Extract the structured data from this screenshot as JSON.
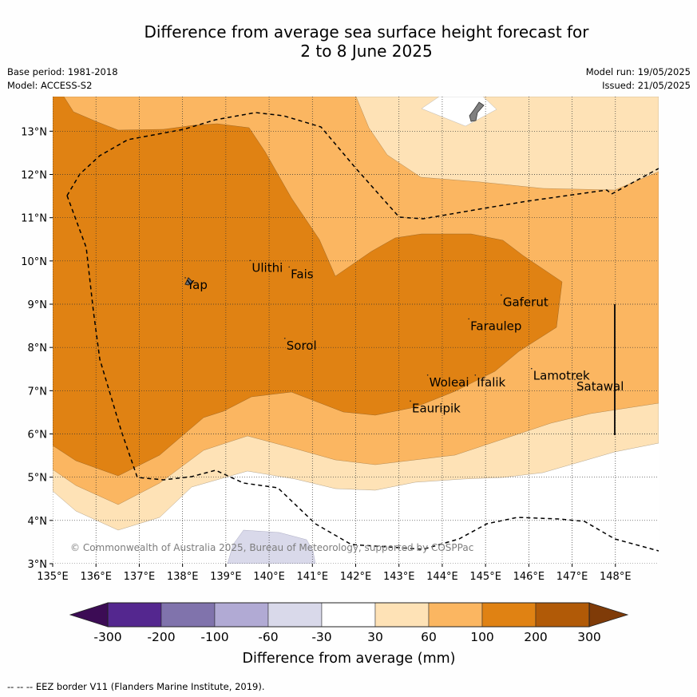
{
  "title_line1": "Difference from average sea surface height forecast for",
  "title_line2": "2 to 8 June 2025",
  "base_period": "Base period: 1981-2018",
  "model": "Model: ACCESS-S2",
  "model_run": "Model run: 19/05/2025",
  "issued": "Issued: 21/05/2025",
  "copyright": "© Commonwealth of Australia 2025, Bureau of Meteorology, supported by COSPPac",
  "footer": "--  --  -- EEZ border V11 (Flanders Marine Institute, 2019).",
  "colorbar_label": "Difference from average (mm)",
  "colorbar_ticks": [
    "-300",
    "-200",
    "-100",
    "-60",
    "-30",
    "30",
    "60",
    "100",
    "200",
    "300"
  ],
  "colorbar_colors": [
    "#3c0c55",
    "#54278f",
    "#8073ac",
    "#b1aad4",
    "#d9d9ea",
    "#ffffff",
    "#fee2b6",
    "#fbb661",
    "#e08213",
    "#b15a07",
    "#7f3b08"
  ],
  "chart_data": {
    "type": "map",
    "lon_range": [
      135,
      149
    ],
    "lat_range": [
      3,
      13.8
    ],
    "x_ticks": [
      "135°E",
      "136°E",
      "137°E",
      "138°E",
      "139°E",
      "140°E",
      "141°E",
      "142°E",
      "143°E",
      "144°E",
      "145°E",
      "146°E",
      "147°E",
      "148°E"
    ],
    "y_ticks": [
      "3°N",
      "4°N",
      "5°N",
      "6°N",
      "7°N",
      "8°N",
      "9°N",
      "10°N",
      "11°N",
      "12°N",
      "13°N"
    ],
    "grid": true,
    "places": [
      {
        "name": "Yap",
        "lon": 138.1,
        "lat": 9.5
      },
      {
        "name": "Ulithi",
        "lon": 139.6,
        "lat": 9.9
      },
      {
        "name": "Fais",
        "lon": 140.5,
        "lat": 9.75
      },
      {
        "name": "Sorol",
        "lon": 140.4,
        "lat": 8.1
      },
      {
        "name": "Gaferut",
        "lon": 145.4,
        "lat": 9.1
      },
      {
        "name": "Faraulep",
        "lon": 144.65,
        "lat": 8.55
      },
      {
        "name": "Lamotrek",
        "lon": 146.1,
        "lat": 7.4
      },
      {
        "name": "Woleai",
        "lon": 143.7,
        "lat": 7.25
      },
      {
        "name": "Ifalik",
        "lon": 144.8,
        "lat": 7.25
      },
      {
        "name": "Satawal",
        "lon": 147.1,
        "lat": 7.15
      },
      {
        "name": "Eauripik",
        "lon": 143.3,
        "lat": 6.65
      }
    ]
  }
}
